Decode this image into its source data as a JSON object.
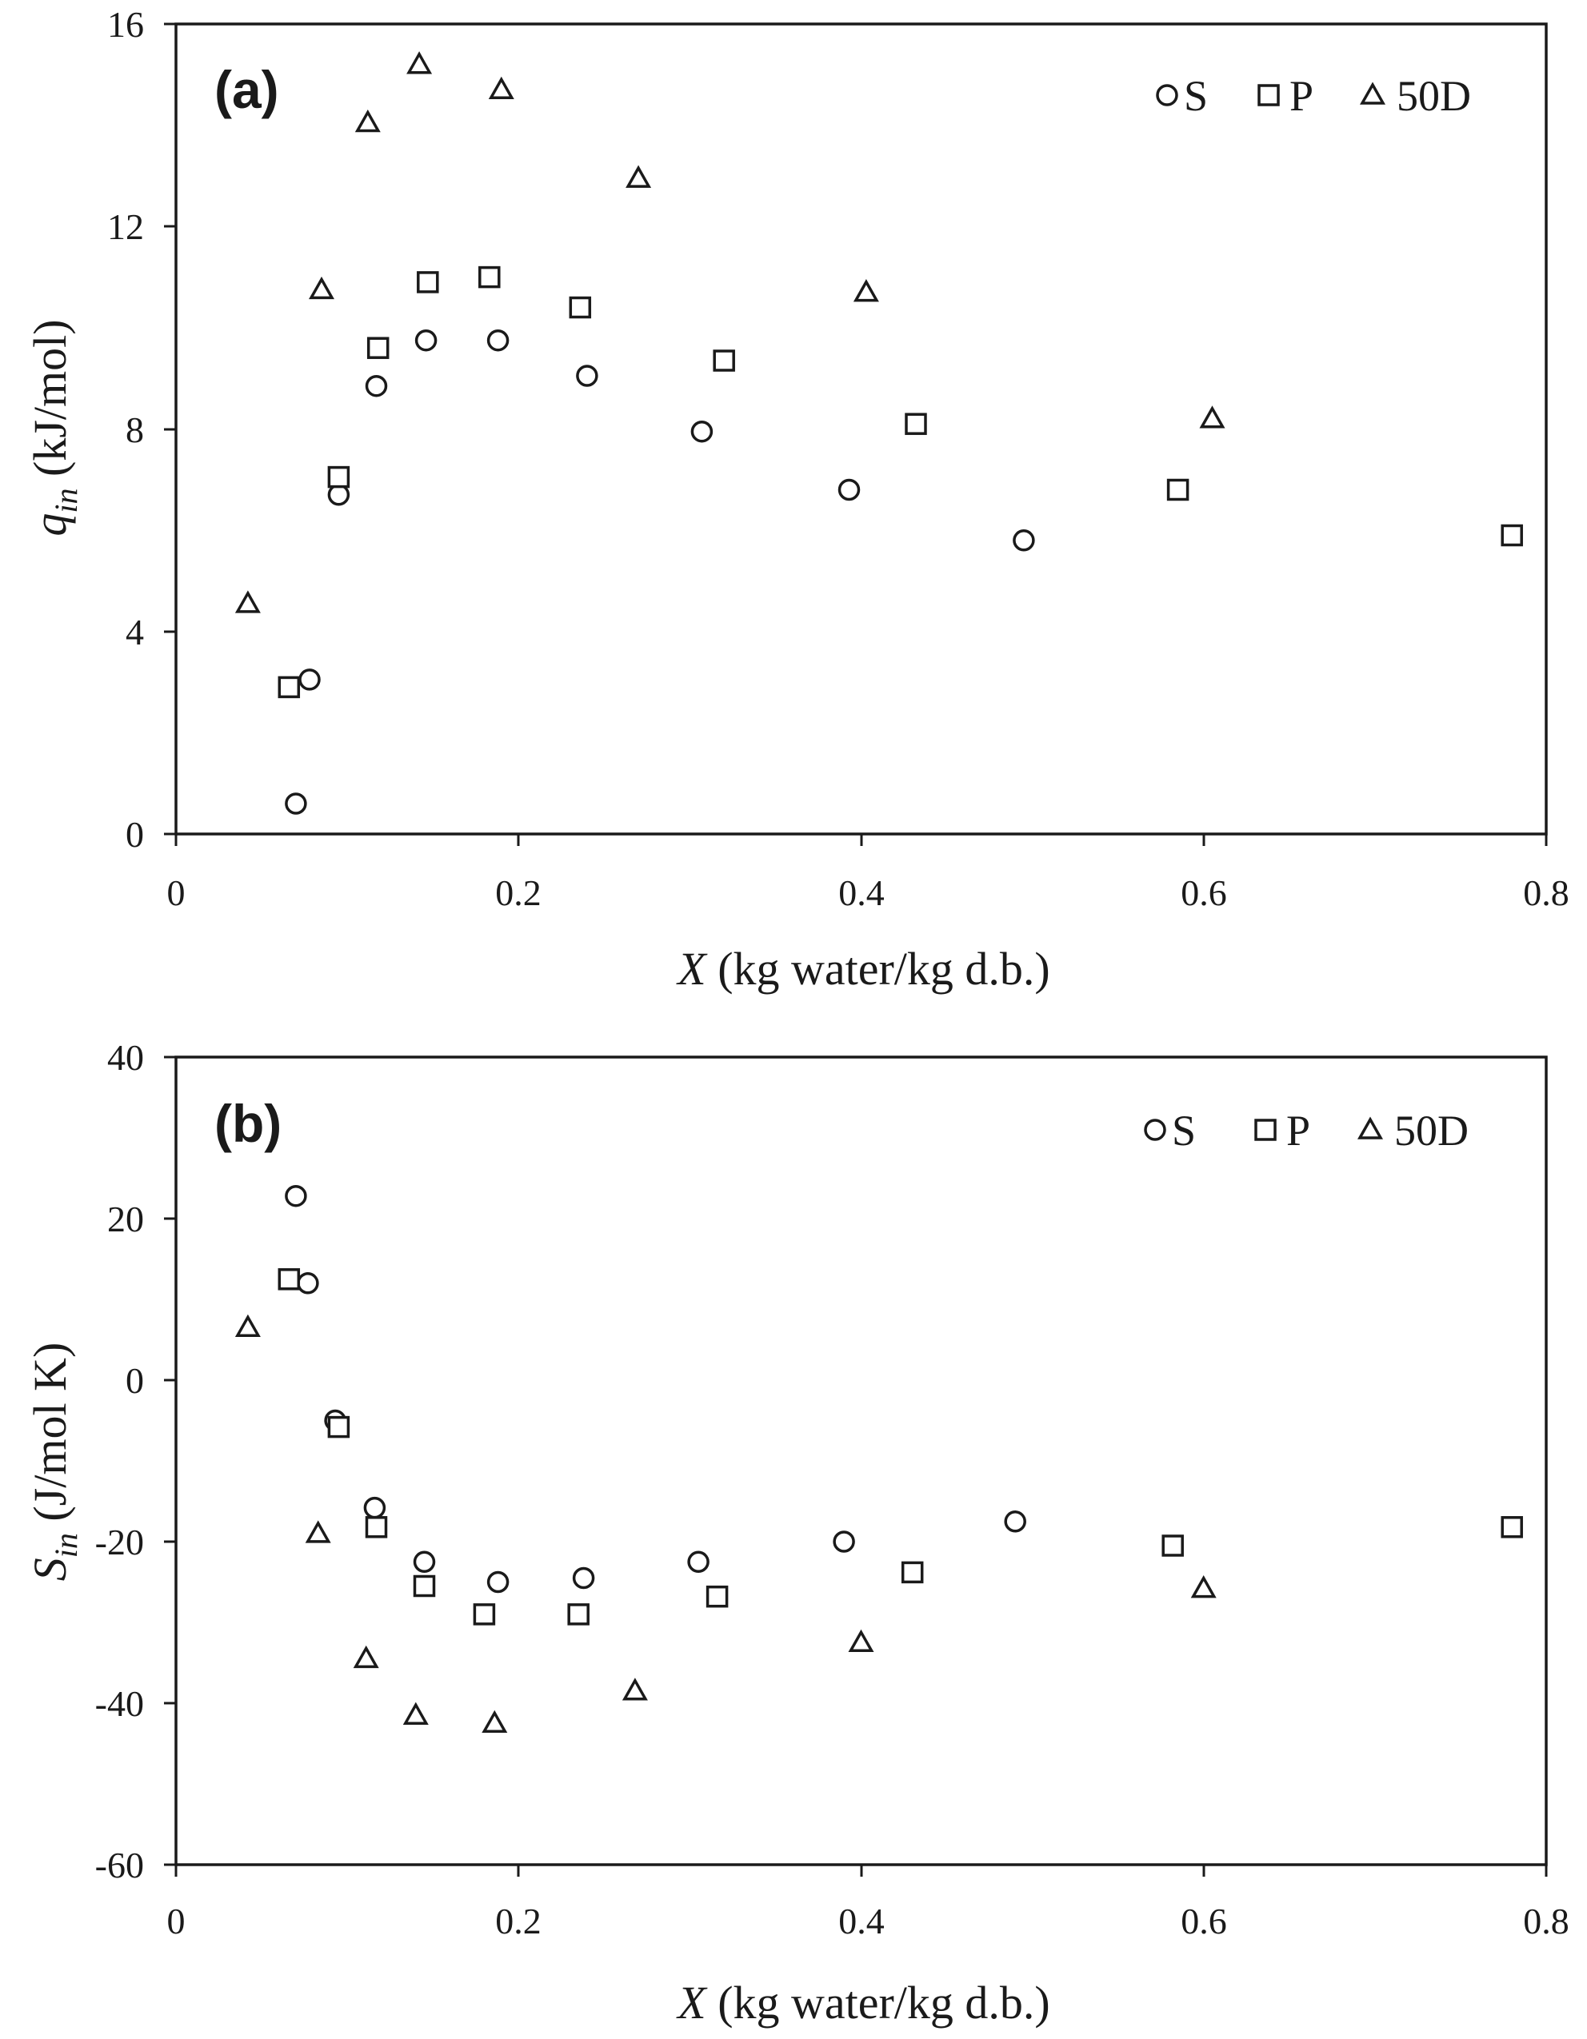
{
  "chart_data": [
    {
      "type": "scatter",
      "panel_label": "(a)",
      "xlabel": "X (kg water/kg d.b.)",
      "ylabel": "q_in (kJ/mol)",
      "xlim": [
        0,
        0.8
      ],
      "ylim": [
        0,
        16
      ],
      "xticks": [
        "0",
        "0.2",
        "0.4",
        "0.6",
        "0.8"
      ],
      "yticks": [
        "0",
        "4",
        "8",
        "12",
        "16"
      ],
      "grid": false,
      "legend_position": "top-right",
      "series": [
        {
          "name": "S",
          "marker": "circle",
          "points": [
            [
              0.07,
              0.6
            ],
            [
              0.078,
              3.05
            ],
            [
              0.095,
              6.7
            ],
            [
              0.117,
              8.85
            ],
            [
              0.146,
              9.75
            ],
            [
              0.188,
              9.75
            ],
            [
              0.24,
              9.05
            ],
            [
              0.307,
              7.95
            ],
            [
              0.393,
              6.8
            ],
            [
              0.495,
              5.8
            ]
          ]
        },
        {
          "name": "P",
          "marker": "square",
          "points": [
            [
              0.066,
              2.9
            ],
            [
              0.095,
              7.05
            ],
            [
              0.118,
              9.6
            ],
            [
              0.147,
              10.9
            ],
            [
              0.183,
              11.0
            ],
            [
              0.236,
              10.4
            ],
            [
              0.32,
              9.35
            ],
            [
              0.432,
              8.1
            ],
            [
              0.585,
              6.8
            ],
            [
              0.78,
              5.9
            ]
          ]
        },
        {
          "name": "50D",
          "marker": "triangle",
          "points": [
            [
              0.042,
              4.55
            ],
            [
              0.085,
              10.75
            ],
            [
              0.112,
              14.05
            ],
            [
              0.142,
              15.2
            ],
            [
              0.19,
              14.7
            ],
            [
              0.27,
              12.95
            ],
            [
              0.403,
              10.7
            ],
            [
              0.605,
              8.2
            ]
          ]
        }
      ]
    },
    {
      "type": "scatter",
      "panel_label": "(b)",
      "xlabel": "X (kg water/kg d.b.)",
      "ylabel": "S_in (J/mol K)",
      "xlim": [
        0,
        0.8
      ],
      "ylim": [
        -60,
        40
      ],
      "xticks": [
        "0",
        "0.2",
        "0.4",
        "0.6",
        "0.8"
      ],
      "yticks": [
        "-60",
        "-40",
        "-20",
        "0",
        "20",
        "40"
      ],
      "grid": false,
      "legend_position": "top-right",
      "series": [
        {
          "name": "S",
          "marker": "circle",
          "points": [
            [
              0.07,
              22.8
            ],
            [
              0.077,
              12.0
            ],
            [
              0.093,
              -5.0
            ],
            [
              0.116,
              -15.8
            ],
            [
              0.145,
              -22.5
            ],
            [
              0.188,
              -25.0
            ],
            [
              0.238,
              -24.5
            ],
            [
              0.305,
              -22.5
            ],
            [
              0.39,
              -20.0
            ],
            [
              0.49,
              -17.5
            ]
          ]
        },
        {
          "name": "P",
          "marker": "square",
          "points": [
            [
              0.066,
              12.5
            ],
            [
              0.095,
              -5.8
            ],
            [
              0.117,
              -18.2
            ],
            [
              0.145,
              -25.5
            ],
            [
              0.18,
              -29.0
            ],
            [
              0.235,
              -29.0
            ],
            [
              0.316,
              -26.8
            ],
            [
              0.43,
              -23.8
            ],
            [
              0.582,
              -20.5
            ],
            [
              0.78,
              -18.2
            ]
          ]
        },
        {
          "name": "50D",
          "marker": "triangle",
          "points": [
            [
              0.042,
              6.5
            ],
            [
              0.083,
              -19.0
            ],
            [
              0.111,
              -34.5
            ],
            [
              0.14,
              -41.5
            ],
            [
              0.186,
              -42.5
            ],
            [
              0.268,
              -38.5
            ],
            [
              0.4,
              -32.5
            ],
            [
              0.6,
              -25.8
            ]
          ]
        }
      ]
    }
  ]
}
